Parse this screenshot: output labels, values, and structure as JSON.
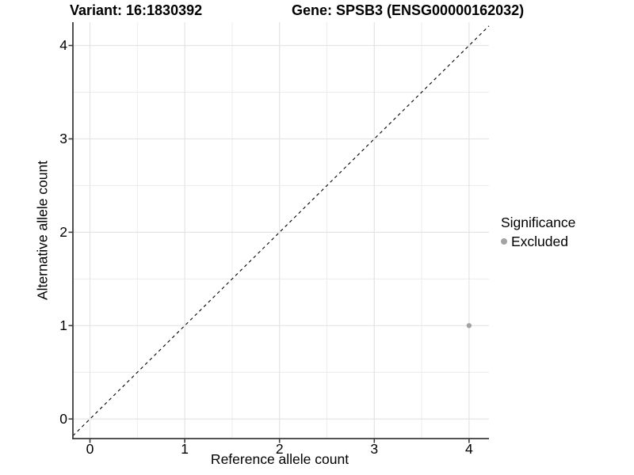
{
  "titles": {
    "variant": "Variant: 16:1830392",
    "gene": "Gene: SPSB3 (ENSG00000162032)"
  },
  "chart_data": {
    "type": "scatter",
    "xlabel": "Reference allele count",
    "ylabel": "Alternative allele count",
    "xlim": [
      -0.18,
      4.21
    ],
    "ylim": [
      -0.21,
      4.25
    ],
    "major_ticks": [
      0,
      1,
      2,
      3,
      4
    ],
    "minor_gridlines": [
      0.5,
      1.5,
      2.5,
      3.5
    ],
    "grid": "major+minor",
    "points": [
      {
        "x": 4,
        "y": 1,
        "series": "Excluded"
      }
    ],
    "reference_line": {
      "type": "identity",
      "slope": 1,
      "intercept": 0,
      "style": "dashed",
      "color": "#000000"
    },
    "legend_position": "right",
    "colors": {
      "excluded": "#a3a3a3",
      "grid_major": "#e4e4e4",
      "grid_minor": "#ececec",
      "axis": "#3c3c3c",
      "text": "#000000"
    }
  },
  "legend": {
    "title": "Significance",
    "items": [
      {
        "label": "Excluded",
        "color": "#a3a3a3"
      }
    ]
  }
}
